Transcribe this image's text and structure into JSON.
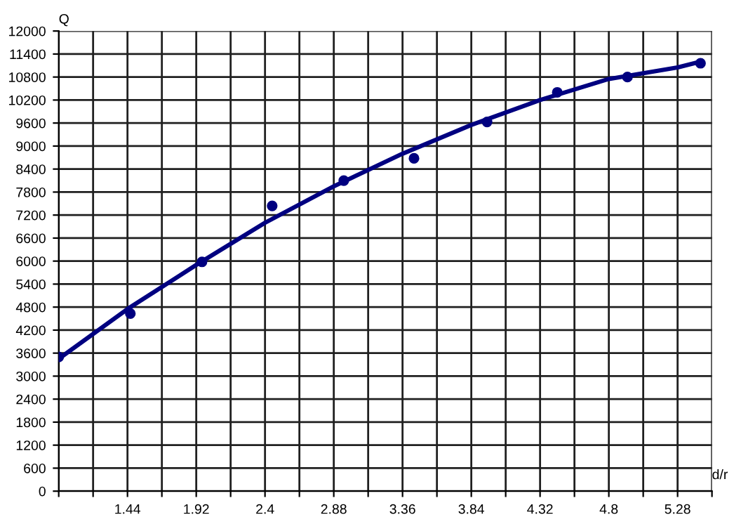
{
  "chart_data": {
    "type": "scatter",
    "xlabel": "d/r",
    "ylabel": "Q",
    "xlim": [
      0.96,
      5.52
    ],
    "ylim": [
      0,
      12000
    ],
    "xticks": [
      {
        "value": 0.96,
        "label": null
      },
      {
        "value": 1.2,
        "label": null
      },
      1.44,
      {
        "value": 1.68,
        "label": null
      },
      1.92,
      {
        "value": 2.16,
        "label": null
      },
      2.4,
      {
        "value": 2.64,
        "label": null
      },
      2.88,
      {
        "value": 3.12,
        "label": null
      },
      3.36,
      {
        "value": 3.6,
        "label": null
      },
      3.84,
      {
        "value": 4.08,
        "label": null
      },
      4.32,
      {
        "value": 4.56,
        "label": null
      },
      4.8,
      {
        "value": 5.04,
        "label": null
      },
      5.28,
      {
        "value": 5.52,
        "label": null
      }
    ],
    "yticks": [
      0,
      600,
      1200,
      1800,
      2400,
      3000,
      3600,
      4200,
      4800,
      5400,
      6000,
      6600,
      7200,
      7800,
      8400,
      9000,
      9600,
      10200,
      10800,
      11400,
      12000
    ],
    "grid": true,
    "legend": false,
    "series": [
      {
        "color": "#000080",
        "marker": "circle",
        "x": [
          0.96,
          1.46,
          1.96,
          2.45,
          2.95,
          3.44,
          3.95,
          4.44,
          4.93,
          5.44
        ],
        "values": [
          3500,
          4630,
          5980,
          7440,
          8100,
          8680,
          9630,
          10400,
          10800,
          11160
        ]
      },
      {
        "type": "line",
        "color": "#000080",
        "marker": "none",
        "line_style": "solid",
        "x": [
          0.96,
          1.44,
          1.92,
          2.4,
          2.88,
          3.36,
          3.84,
          4.32,
          4.8,
          5.28,
          5.44
        ],
        "values": [
          3450,
          4750,
          5900,
          7000,
          7950,
          8800,
          9550,
          10200,
          10750,
          11050,
          11200
        ]
      }
    ]
  }
}
